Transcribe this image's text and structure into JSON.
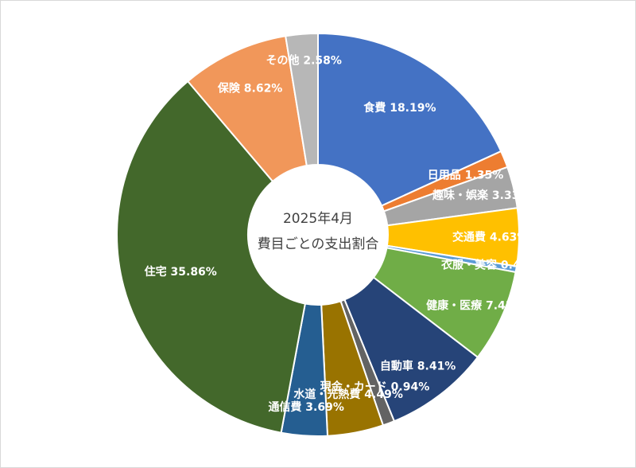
{
  "chart_data": {
    "type": "pie",
    "title_line1": "2025年4月",
    "title_line2": "費目ごとの支出割合",
    "slices": [
      {
        "label": "食費 18.19%",
        "value": 18.19,
        "color": "#4472c4"
      },
      {
        "label": "日用品 1.35%",
        "value": 1.35,
        "color": "#ed7d31"
      },
      {
        "label": "趣味・娯楽 3.33%",
        "value": 3.33,
        "color": "#a5a5a5"
      },
      {
        "label": "交通費 4.63%",
        "value": 4.63,
        "color": "#ffc000"
      },
      {
        "label": "衣服・美容 0.47%",
        "value": 0.47,
        "color": "#5b9bd5"
      },
      {
        "label": "健康・医療 7.43%",
        "value": 7.43,
        "color": "#70ad47"
      },
      {
        "label": "自動車 8.41%",
        "value": 8.41,
        "color": "#264478"
      },
      {
        "label": "現金・カード 0.94%",
        "value": 0.94,
        "color": "#636363"
      },
      {
        "label": "水道・光熱費 4.49%",
        "value": 4.49,
        "color": "#997300"
      },
      {
        "label": "通信費 3.69%",
        "value": 3.69,
        "color": "#255e91"
      },
      {
        "label": "住宅 35.86%",
        "value": 35.86,
        "color": "#43682b"
      },
      {
        "label": "保険 8.62%",
        "value": 8.62,
        "color": "#f1975a"
      },
      {
        "label": "その他 2.58%",
        "value": 2.58,
        "color": "#b7b7b7"
      }
    ]
  }
}
